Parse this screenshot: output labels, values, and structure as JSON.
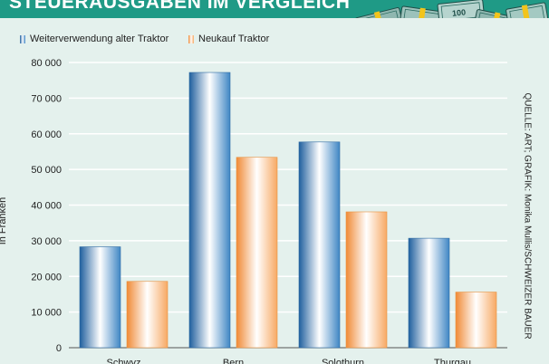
{
  "header": {
    "title": "STEUERAUSGABEN IM VERGLEICH"
  },
  "illustration": {
    "icon": "money-bundles-icon",
    "banknote_label": "100"
  },
  "source": "QUELLE: ART; GRAFIK: Monika Mullis/SCHWEIZER BAUER",
  "colors": {
    "header": "#1f9a86",
    "background": "#e4f1ed",
    "series_blue": "#3f86c4",
    "series_orange": "#f7a964",
    "grid": "#ffffff"
  },
  "chart_data": {
    "type": "bar",
    "title": "STEUERAUSGABEN IM VERGLEICH",
    "xlabel": "",
    "ylabel": "In Franken",
    "categories": [
      "Schwyz",
      "Bern",
      "Solothurn",
      "Thurgau"
    ],
    "series": [
      {
        "name": "Weiterverwendung alter Traktor",
        "values": [
          28300,
          77200,
          57700,
          30700
        ]
      },
      {
        "name": "Neukauf Traktor",
        "values": [
          18600,
          53400,
          38100,
          15600
        ]
      }
    ],
    "ylim": [
      0,
      80000
    ],
    "yticks": [
      0,
      10000,
      20000,
      30000,
      40000,
      50000,
      60000,
      70000,
      80000
    ],
    "ytick_labels": [
      "0",
      "10 000",
      "20 000",
      "30 000",
      "40 000",
      "50 000",
      "60 000",
      "70 000",
      "80 000"
    ],
    "grid": true,
    "legend": "top-left"
  }
}
